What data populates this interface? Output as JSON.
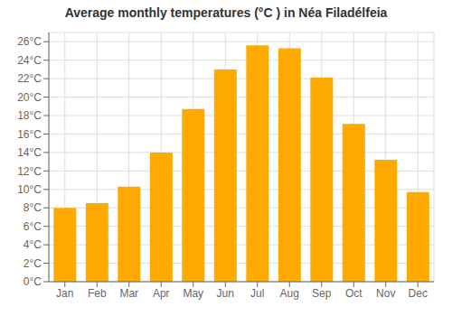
{
  "chart_data": {
    "type": "bar",
    "title": "Average monthly temperatures (°C ) in Néa Filadélfeia",
    "categories": [
      "Jan",
      "Feb",
      "Mar",
      "Apr",
      "May",
      "Jun",
      "Jul",
      "Aug",
      "Sep",
      "Oct",
      "Nov",
      "Dec"
    ],
    "values": [
      8.0,
      8.5,
      10.3,
      14.0,
      18.7,
      23.0,
      25.6,
      25.3,
      22.1,
      17.1,
      13.2,
      9.7
    ],
    "color": "#FFAA00",
    "ylim": [
      0,
      27
    ],
    "yticks": [
      {
        "value": 0,
        "label": "0°C"
      },
      {
        "value": 2,
        "label": "2°C"
      },
      {
        "value": 4,
        "label": "4°C"
      },
      {
        "value": 6,
        "label": "6°C"
      },
      {
        "value": 8,
        "label": "8°C"
      },
      {
        "value": 10,
        "label": "10°C"
      },
      {
        "value": 12,
        "label": "12°C"
      },
      {
        "value": 14,
        "label": "14°C"
      },
      {
        "value": 16,
        "label": "16°C"
      },
      {
        "value": 18,
        "label": "18°C"
      },
      {
        "value": 20,
        "label": "20°C"
      },
      {
        "value": 22,
        "label": "22°C"
      },
      {
        "value": 24,
        "label": "24°C"
      },
      {
        "value": 26,
        "label": "26°C"
      }
    ],
    "grid": true
  }
}
